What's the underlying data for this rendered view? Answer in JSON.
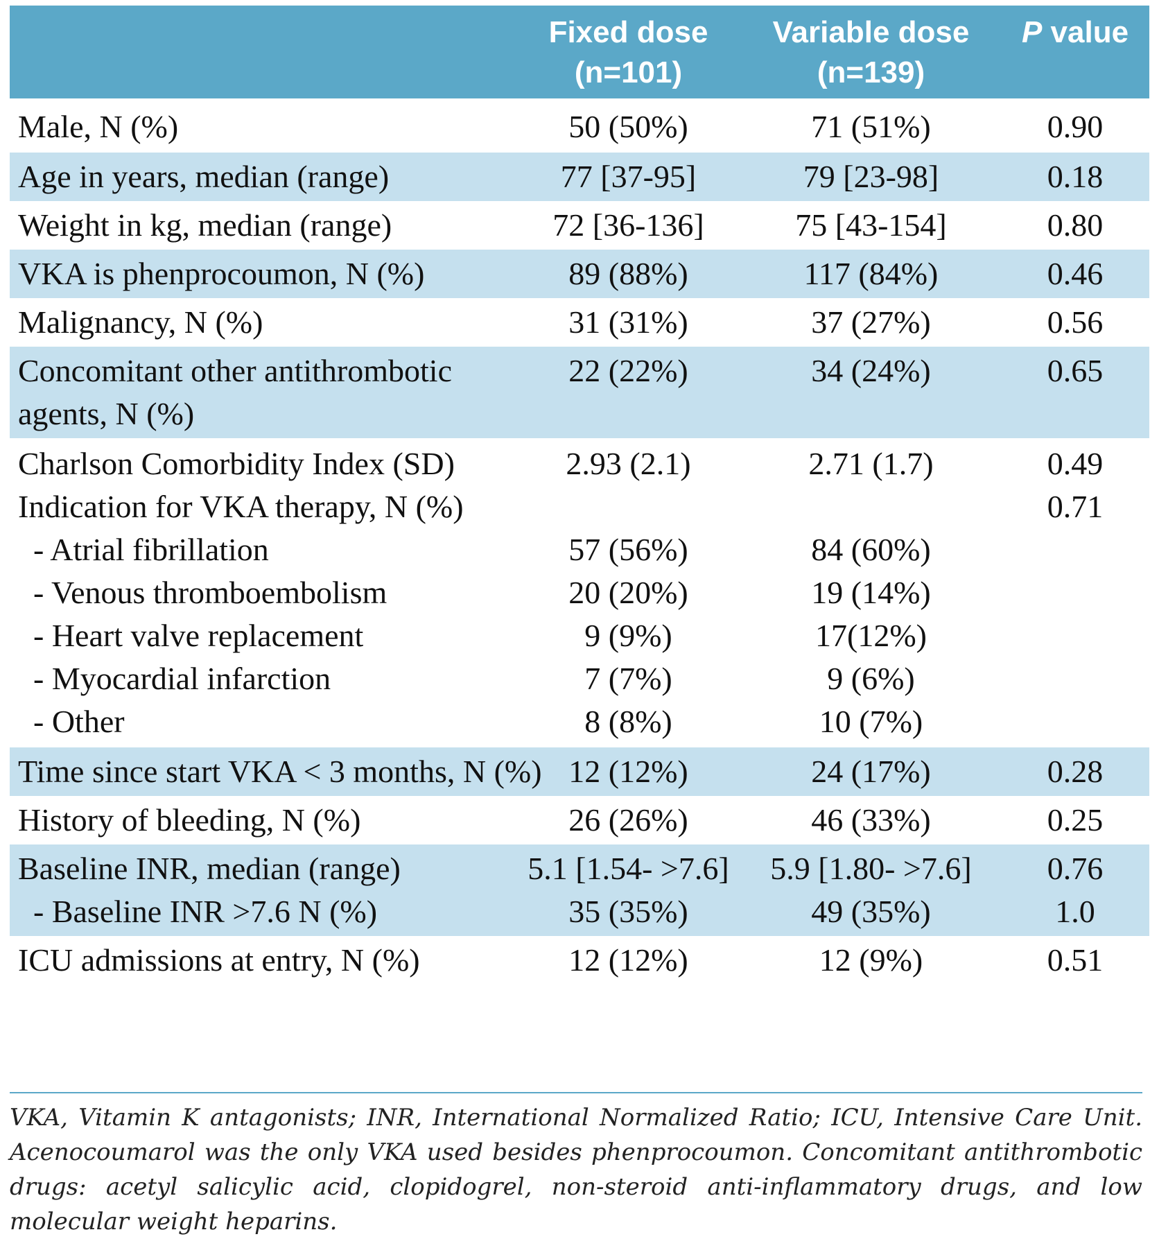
{
  "header": {
    "col1_line1": "Fixed dose",
    "col1_line2": "(n=101)",
    "col2_line1": "Variable dose",
    "col2_line2": "(n=139)",
    "col3_italic": "P",
    "col3_rest": " value"
  },
  "rows": {
    "male": {
      "label": "Male, N (%)",
      "fixed": "50 (50%)",
      "variable": "71 (51%)",
      "p": "0.90"
    },
    "age": {
      "label": "Age in years, median (range)",
      "fixed": "77 [37-95]",
      "variable": "79 [23-98]",
      "p": "0.18"
    },
    "weight": {
      "label": "Weight in kg, median (range)",
      "fixed": "72 [36-136]",
      "variable": "75 [43-154]",
      "p": "0.80"
    },
    "vka": {
      "label": "VKA is phenprocoumon, N (%)",
      "fixed": "89 (88%)",
      "variable": "117 (84%)",
      "p": "0.46"
    },
    "malignancy": {
      "label": "Malignancy, N (%)",
      "fixed": "31 (31%)",
      "variable": "37 (27%)",
      "p": "0.56"
    },
    "concomitant": {
      "label_line1": "Concomitant other antithrombotic",
      "label_line2": "agents, N (%)",
      "fixed": "22 (22%)",
      "variable": "34 (24%)",
      "p": "0.65"
    },
    "charlson": {
      "label": "Charlson Comorbidity Index (SD)",
      "fixed": "2.93 (2.1)",
      "variable": "2.71 (1.7)",
      "p": "0.49"
    },
    "indication": {
      "label": "Indication for VKA therapy, N (%)",
      "p": "0.71"
    },
    "af": {
      "label": "- Atrial fibrillation",
      "fixed": "57 (56%)",
      "variable": "84 (60%)"
    },
    "vte": {
      "label": "- Venous thromboembolism",
      "fixed": "20 (20%)",
      "variable": "19 (14%)"
    },
    "hvr": {
      "label": "- Heart valve replacement",
      "fixed": "9 (9%)",
      "variable": "17(12%)"
    },
    "mi": {
      "label": "- Myocardial infarction",
      "fixed": "7 (7%)",
      "variable": "9 (6%)"
    },
    "other": {
      "label": "- Other",
      "fixed": "8 (8%)",
      "variable": "10 (7%)"
    },
    "time": {
      "label": "Time since start VKA < 3 months, N (%)",
      "fixed": "12 (12%)",
      "variable": "24 (17%)",
      "p": "0.28"
    },
    "bleeding": {
      "label": "History of bleeding, N (%)",
      "fixed": "26 (26%)",
      "variable": "46 (33%)",
      "p": "0.25"
    },
    "inr": {
      "label": "Baseline INR, median (range)",
      "fixed": "5.1 [1.54- >7.6]",
      "variable": "5.9 [1.80- >7.6]",
      "p": "0.76"
    },
    "inr_high": {
      "label": "- Baseline INR >7.6 N (%)",
      "fixed": "35 (35%)",
      "variable": "49 (35%)",
      "p": "1.0"
    },
    "icu": {
      "label": "ICU admissions at entry, N (%)",
      "fixed": "12 (12%)",
      "variable": "12 (9%)",
      "p": "0.51"
    }
  },
  "footnote": "VKA, Vitamin K antagonists; INR, International Normalized Ratio; ICU, Intensive Care Unit. Acenocoumarol was the only VKA used besides phenprocoumon. Concomitant antithrombotic drugs: acetyl salicylic acid, clopidogrel, non-steroid anti-inflammatory drugs, and low molecular weight heparins.",
  "colors": {
    "header": "#5ba8c8",
    "shade": "#c5e0ee"
  }
}
